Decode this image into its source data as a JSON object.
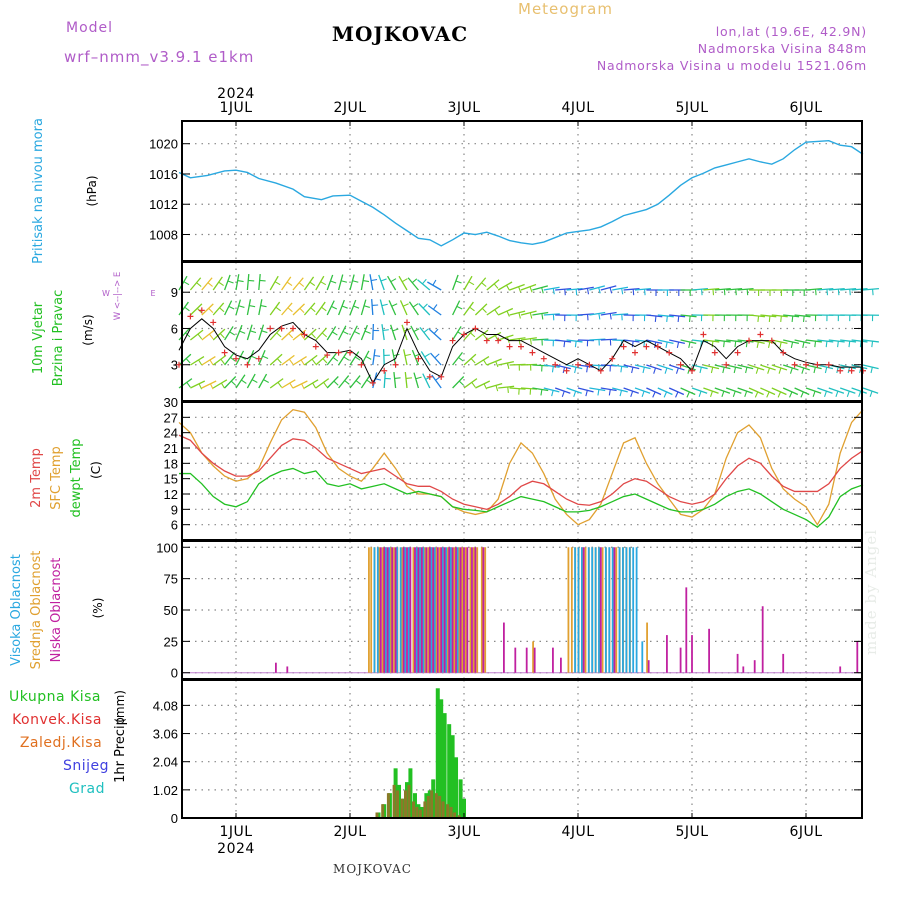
{
  "header": {
    "title": "MOJKOVAC",
    "subtitle": "Meteogram",
    "model_label": "Model",
    "model_name": "wrf–nmm_v3.9.1  e1km",
    "coords": "lon,lat (19.6E, 42.9N)",
    "elevation": "Nadmorska Visina 848m",
    "model_elevation": "Nadmorska Visina u modelu 1521.06m",
    "footer": "MOJKOVAC",
    "watermark": "made by Angel"
  },
  "axis": {
    "year": "2024",
    "day_labels": [
      "1JUL",
      "2JUL",
      "3JUL",
      "4JUL",
      "5JUL",
      "6JUL"
    ]
  },
  "colors": {
    "pressure": "#2aa8e0",
    "wind_speed": "#000000",
    "wind_gust": "#e03030",
    "temp_2m": "#e04848",
    "temp_sfc": "#e0a030",
    "dewpoint": "#22c022",
    "cloud_high": "#2aa8e0",
    "cloud_mid": "#e0a030",
    "cloud_low": "#c020a0",
    "precip_total": "#22c022",
    "precip_conv": "#e03030",
    "precip_frozen": "#e07020",
    "precip_snow": "#4040e0",
    "precip_grad": "#20c0c0"
  },
  "chart_data": [
    {
      "type": "line",
      "panel": "pressure",
      "ylabel_main": "Pritisak na nivou mora",
      "ylabel_unit": "(hPa)",
      "x_days": [
        0.5,
        0.6,
        0.75,
        0.9,
        1.0,
        1.1,
        1.2,
        1.35,
        1.5,
        1.6,
        1.75,
        1.85,
        2.0,
        2.1,
        2.2,
        2.3,
        2.4,
        2.5,
        2.6,
        2.7,
        2.8,
        2.9,
        3.0,
        3.1,
        3.2,
        3.3,
        3.4,
        3.5,
        3.6,
        3.7,
        3.8,
        3.9,
        4.0,
        4.1,
        4.2,
        4.3,
        4.4,
        4.5,
        4.6,
        4.7,
        4.8,
        4.9,
        5.0,
        5.1,
        5.2,
        5.3,
        5.4,
        5.5,
        5.6,
        5.7,
        5.8,
        5.9,
        6.0,
        6.1,
        6.2,
        6.3,
        6.4,
        6.5
      ],
      "series": [
        {
          "values": [
            1016.2,
            1015.5,
            1015.8,
            1016.4,
            1016.5,
            1016.2,
            1015.4,
            1014.8,
            1014.0,
            1013.0,
            1012.6,
            1013.1,
            1013.2,
            1012.4,
            1011.6,
            1010.6,
            1009.5,
            1008.5,
            1007.5,
            1007.3,
            1006.5,
            1007.3,
            1008.2,
            1008.0,
            1008.3,
            1007.8,
            1007.2,
            1006.9,
            1006.7,
            1007.0,
            1007.6,
            1008.2,
            1008.4,
            1008.6,
            1009.0,
            1009.7,
            1010.5,
            1010.9,
            1011.3,
            1012.0,
            1013.2,
            1014.5,
            1015.5,
            1016.1,
            1016.8,
            1017.2,
            1017.6,
            1018.0,
            1017.6,
            1017.3,
            1018.0,
            1019.2,
            1020.2,
            1020.3,
            1020.4,
            1019.8,
            1019.6,
            1018.6
          ]
        }
      ],
      "ylim": [
        1004.5,
        1023
      ],
      "yticks": [
        1008,
        1012,
        1016,
        1020
      ]
    },
    {
      "type": "line",
      "panel": "wind",
      "ylabel_main": "10m Vjetar",
      "ylabel_sub": "Brzina i Pravac",
      "ylabel_unit": "(m/s)",
      "compass": "W <--|--> E",
      "x_days": [
        0.5,
        0.6,
        0.7,
        0.8,
        0.9,
        1.0,
        1.1,
        1.2,
        1.3,
        1.4,
        1.5,
        1.6,
        1.7,
        1.8,
        1.9,
        2.0,
        2.1,
        2.2,
        2.3,
        2.4,
        2.5,
        2.6,
        2.7,
        2.8,
        2.9,
        3.0,
        3.1,
        3.2,
        3.3,
        3.4,
        3.5,
        3.6,
        3.7,
        3.8,
        3.9,
        4.0,
        4.1,
        4.2,
        4.3,
        4.4,
        4.5,
        4.6,
        4.7,
        4.8,
        4.9,
        5.0,
        5.1,
        5.2,
        5.3,
        5.4,
        5.5,
        5.6,
        5.7,
        5.8,
        5.9,
        6.0,
        6.1,
        6.2,
        6.3,
        6.4,
        6.5
      ],
      "series": [
        {
          "values": [
            4.2,
            6.0,
            6.8,
            6.0,
            4.5,
            3.8,
            3.5,
            4.2,
            5.5,
            6.2,
            6.5,
            5.5,
            5.0,
            4.0,
            4.0,
            4.2,
            3.5,
            1.5,
            3.0,
            3.5,
            6.0,
            4.0,
            2.5,
            2.0,
            4.5,
            5.5,
            6.0,
            5.5,
            5.5,
            5.0,
            5.0,
            4.5,
            4.0,
            3.5,
            3.0,
            3.5,
            3.0,
            2.5,
            3.5,
            5.0,
            4.5,
            5.0,
            4.5,
            4.0,
            3.5,
            2.5,
            5.0,
            4.5,
            3.5,
            4.5,
            5.0,
            5.0,
            5.0,
            4.0,
            3.5,
            3.2,
            3.0,
            3.0,
            2.8,
            2.8,
            2.8
          ]
        },
        {
          "values": [
            3.0,
            7.0,
            7.5,
            6.5,
            4.0,
            3.5,
            3.0,
            3.5,
            6.0,
            6.0,
            6.0,
            5.5,
            4.5,
            3.8,
            4.0,
            4.0,
            3.0,
            1.5,
            2.5,
            3.0,
            6.5,
            3.5,
            2.0,
            2.0,
            5.0,
            5.5,
            6.0,
            5.0,
            5.0,
            4.5,
            4.5,
            4.0,
            3.5,
            3.0,
            2.5,
            3.0,
            3.0,
            2.5,
            3.5,
            4.5,
            4.0,
            4.5,
            4.5,
            4.0,
            3.0,
            2.5,
            5.5,
            4.0,
            3.0,
            4.0,
            5.0,
            5.5,
            5.0,
            4.0,
            3.0,
            3.0,
            3.0,
            3.0,
            2.5,
            2.5,
            2.5
          ]
        }
      ],
      "ylim": [
        0,
        11.5
      ],
      "yticks": [
        3,
        6,
        9
      ],
      "barb_direction_deg": [
        210,
        220,
        220,
        215,
        200,
        190,
        185,
        185,
        210,
        215,
        220,
        215,
        210,
        200,
        195,
        195,
        190,
        170,
        160,
        150,
        150,
        140,
        130,
        120,
        200,
        210,
        220,
        230,
        240,
        250,
        250,
        255,
        260,
        265,
        265,
        260,
        255,
        255,
        260,
        265,
        265,
        270,
        270,
        270,
        270,
        265,
        265,
        265,
        265,
        265,
        270,
        270,
        270,
        270,
        270,
        265,
        265,
        265,
        265,
        265,
        265
      ]
    },
    {
      "type": "line",
      "panel": "temperature",
      "ylabel_main": [
        "2m Temp",
        "SFC Temp",
        "dewpt Temp"
      ],
      "ylabel_unit": "(C)",
      "x_days": [
        0.5,
        0.6,
        0.7,
        0.8,
        0.9,
        1.0,
        1.1,
        1.2,
        1.3,
        1.4,
        1.5,
        1.6,
        1.7,
        1.8,
        1.9,
        2.0,
        2.1,
        2.2,
        2.3,
        2.4,
        2.5,
        2.6,
        2.7,
        2.8,
        2.9,
        3.0,
        3.1,
        3.2,
        3.3,
        3.4,
        3.5,
        3.6,
        3.7,
        3.8,
        3.9,
        4.0,
        4.1,
        4.2,
        4.3,
        4.4,
        4.5,
        4.6,
        4.7,
        4.8,
        4.9,
        5.0,
        5.1,
        5.2,
        5.3,
        5.4,
        5.5,
        5.6,
        5.7,
        5.8,
        5.9,
        6.0,
        6.1,
        6.2,
        6.3,
        6.4,
        6.5
      ],
      "series": [
        {
          "name": "2m Temp",
          "values": [
            23.5,
            22.5,
            20.0,
            18.0,
            16.5,
            15.5,
            15.5,
            16.5,
            19.0,
            21.5,
            22.8,
            22.5,
            21.0,
            19.0,
            18.0,
            17.0,
            16.0,
            16.5,
            17.0,
            15.5,
            14.0,
            13.5,
            13.5,
            12.5,
            11.0,
            10.0,
            9.5,
            9.0,
            10.0,
            11.5,
            13.5,
            14.5,
            14.0,
            12.5,
            11.0,
            10.0,
            9.8,
            10.5,
            12.0,
            14.0,
            15.0,
            14.5,
            13.0,
            11.5,
            10.5,
            10.0,
            10.5,
            12.0,
            15.0,
            17.5,
            19.0,
            18.0,
            15.5,
            13.5,
            12.5,
            12.5,
            12.5,
            14.0,
            17.0,
            19.0,
            20.5
          ]
        },
        {
          "name": "SFC Temp",
          "values": [
            26.0,
            24.0,
            20.0,
            17.5,
            15.5,
            14.5,
            15.0,
            17.0,
            22.0,
            26.5,
            28.5,
            28.0,
            25.0,
            20.0,
            17.0,
            15.5,
            14.5,
            17.0,
            20.0,
            17.0,
            13.5,
            12.0,
            12.0,
            11.5,
            9.5,
            8.5,
            8.0,
            8.5,
            11.0,
            18.0,
            22.0,
            20.0,
            16.0,
            11.0,
            8.0,
            6.0,
            7.0,
            10.0,
            16.0,
            22.0,
            23.0,
            18.0,
            14.0,
            11.0,
            8.0,
            7.5,
            9.0,
            12.0,
            19.0,
            24.0,
            25.5,
            23.0,
            17.0,
            13.0,
            11.0,
            9.5,
            6.0,
            10.0,
            20.0,
            26.0,
            28.5
          ]
        },
        {
          "name": "dewpt Temp",
          "values": [
            16.0,
            16.0,
            14.0,
            11.5,
            10.0,
            9.5,
            10.5,
            14.0,
            15.5,
            16.5,
            17.0,
            16.0,
            16.5,
            14.0,
            13.5,
            14.0,
            13.0,
            13.5,
            14.0,
            13.0,
            12.0,
            12.5,
            12.0,
            11.5,
            9.5,
            9.0,
            8.8,
            8.5,
            9.5,
            10.5,
            11.5,
            11.0,
            10.5,
            9.5,
            8.5,
            8.5,
            8.8,
            9.5,
            10.5,
            11.5,
            12.0,
            11.0,
            10.0,
            9.0,
            8.5,
            8.5,
            9.0,
            10.0,
            11.5,
            12.5,
            13.0,
            12.0,
            10.5,
            9.0,
            8.0,
            7.0,
            5.5,
            7.5,
            11.5,
            13.0,
            13.8
          ]
        }
      ],
      "ylim": [
        3,
        30
      ],
      "yticks": [
        6,
        9,
        12,
        15,
        18,
        21,
        24,
        27,
        30
      ]
    },
    {
      "type": "bar",
      "panel": "clouds",
      "ylabel_main": [
        "Visoka Oblacnost",
        "Srednja Oblacnost",
        "Niska Oblacnost"
      ],
      "ylabel_unit": "(%)",
      "x_days": [
        1.35,
        1.45,
        2.18,
        2.2,
        2.23,
        2.27,
        2.3,
        2.33,
        2.37,
        2.4,
        2.43,
        2.47,
        2.5,
        2.53,
        2.57,
        2.6,
        2.63,
        2.67,
        2.7,
        2.73,
        2.77,
        2.8,
        2.83,
        2.87,
        2.9,
        2.93,
        2.97,
        3.0,
        3.03,
        3.07,
        3.1,
        3.13,
        3.17,
        3.2,
        3.35,
        3.45,
        3.55,
        3.62,
        3.78,
        3.85,
        3.93,
        3.96,
        3.99,
        4.02,
        4.05,
        4.08,
        4.11,
        4.14,
        4.17,
        4.2,
        4.23,
        4.26,
        4.29,
        4.32,
        4.35,
        4.38,
        4.41,
        4.44,
        4.47,
        4.5,
        4.55,
        4.62,
        4.78,
        4.9,
        4.95,
        5.0,
        5.15,
        5.4,
        5.45,
        5.55,
        5.62,
        5.8,
        6.3,
        6.45
      ],
      "series": [
        {
          "name": "Visoka Oblacnost",
          "values": [
            0,
            0,
            0,
            100,
            100,
            0,
            100,
            100,
            0,
            100,
            100,
            100,
            100,
            0,
            100,
            100,
            100,
            0,
            100,
            100,
            0,
            100,
            100,
            100,
            0,
            100,
            0,
            0,
            0,
            0,
            0,
            0,
            0,
            0,
            0,
            0,
            0,
            0,
            0,
            0,
            0,
            100,
            100,
            100,
            0,
            100,
            100,
            100,
            100,
            0,
            100,
            100,
            100,
            0,
            100,
            100,
            100,
            100,
            100,
            100,
            25,
            0,
            0,
            0,
            0,
            0,
            0,
            0,
            0,
            0,
            0,
            0,
            0,
            0
          ]
        },
        {
          "name": "Srednja Oblacnost",
          "values": [
            0,
            0,
            100,
            100,
            100,
            100,
            100,
            100,
            100,
            100,
            100,
            100,
            100,
            100,
            100,
            100,
            100,
            100,
            100,
            100,
            100,
            100,
            100,
            100,
            100,
            100,
            100,
            100,
            100,
            100,
            100,
            100,
            100,
            100,
            0,
            0,
            0,
            25,
            0,
            0,
            100,
            100,
            100,
            100,
            100,
            100,
            100,
            100,
            100,
            100,
            100,
            100,
            100,
            100,
            100,
            100,
            100,
            100,
            100,
            0,
            0,
            40,
            0,
            0,
            0,
            0,
            0,
            0,
            0,
            0,
            0,
            0,
            0,
            0
          ]
        },
        {
          "name": "Niska Oblacnost",
          "values": [
            8,
            5,
            0,
            0,
            0,
            100,
            100,
            100,
            100,
            100,
            0,
            100,
            100,
            100,
            100,
            100,
            100,
            100,
            100,
            100,
            100,
            100,
            100,
            100,
            100,
            100,
            100,
            100,
            100,
            100,
            100,
            0,
            100,
            0,
            40,
            20,
            20,
            20,
            20,
            12,
            0,
            0,
            0,
            0,
            100,
            0,
            0,
            0,
            0,
            100,
            0,
            0,
            0,
            100,
            0,
            0,
            0,
            0,
            0,
            0,
            0,
            10,
            30,
            20,
            68,
            30,
            35,
            15,
            5,
            10,
            53,
            15,
            5,
            25
          ]
        }
      ],
      "ylim": [
        -5,
        105
      ],
      "yticks": [
        0,
        25,
        50,
        75,
        100
      ]
    },
    {
      "type": "bar",
      "panel": "precip",
      "ylabel_main": "1hr Precip",
      "ylabel_unit": "(mm)",
      "legend": [
        "Ukupna Kisa",
        "Konvek.Kisa",
        "Zaledj.Kisa",
        "Snijeg",
        "Grad"
      ],
      "x_days": [
        2.25,
        2.3,
        2.35,
        2.4,
        2.43,
        2.47,
        2.5,
        2.53,
        2.57,
        2.6,
        2.63,
        2.67,
        2.7,
        2.73,
        2.77,
        2.8,
        2.83,
        2.87,
        2.9,
        2.93,
        2.97,
        3.0,
        3.03,
        3.07
      ],
      "series": [
        {
          "name": "Ukupna Kisa",
          "values": [
            0.2,
            0.5,
            0.9,
            1.8,
            1.2,
            0.7,
            1.3,
            1.8,
            0.9,
            0.5,
            0.4,
            0.9,
            1.0,
            1.4,
            4.7,
            4.3,
            3.8,
            3.4,
            3.0,
            2.2,
            1.4,
            0.7,
            0,
            0
          ]
        },
        {
          "name": "Konvek.Kisa",
          "values": [
            0.2,
            0.5,
            0.9,
            1.2,
            1.0,
            0.7,
            1.0,
            1.2,
            0.6,
            0.4,
            0.3,
            0.6,
            0.8,
            1.0,
            0.9,
            0.8,
            0.6,
            0.5,
            0.4,
            0.2,
            0.1,
            0,
            0,
            0
          ]
        }
      ],
      "ylim": [
        0,
        5.0
      ],
      "yticks": [
        0,
        1.02,
        2.04,
        3.06,
        4.08
      ]
    }
  ]
}
